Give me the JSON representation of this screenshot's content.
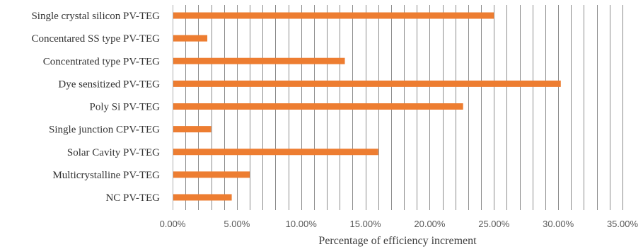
{
  "chart_data": {
    "type": "bar",
    "orientation": "horizontal",
    "categories": [
      "Single crystal silicon PV-TEG",
      "Concentared SS type PV-TEG",
      "Concentrated type PV-TEG",
      "Dye sensitized PV-TEG",
      "Poly Si PV-TEG",
      "Single junction CPV-TEG",
      "Solar Cavity PV-TEG",
      "Multicrystalline PV-TEG",
      "NC PV-TEG"
    ],
    "values": [
      0.25,
      0.027,
      0.134,
      0.302,
      0.226,
      0.03,
      0.16,
      0.06,
      0.046
    ],
    "xlabel": "Percentage of efficiency increment",
    "ylabel": "",
    "xlim": [
      0,
      0.35
    ],
    "x_ticks": [
      0,
      0.05,
      0.1,
      0.15,
      0.2,
      0.25,
      0.3,
      0.35
    ],
    "x_tick_labels": [
      "0.00%",
      "5.00%",
      "10.00%",
      "15.00%",
      "20.00%",
      "25.00%",
      "30.00%",
      "35.00%"
    ],
    "grid": true,
    "legend": "none",
    "bar_color": "#ED7D31"
  }
}
